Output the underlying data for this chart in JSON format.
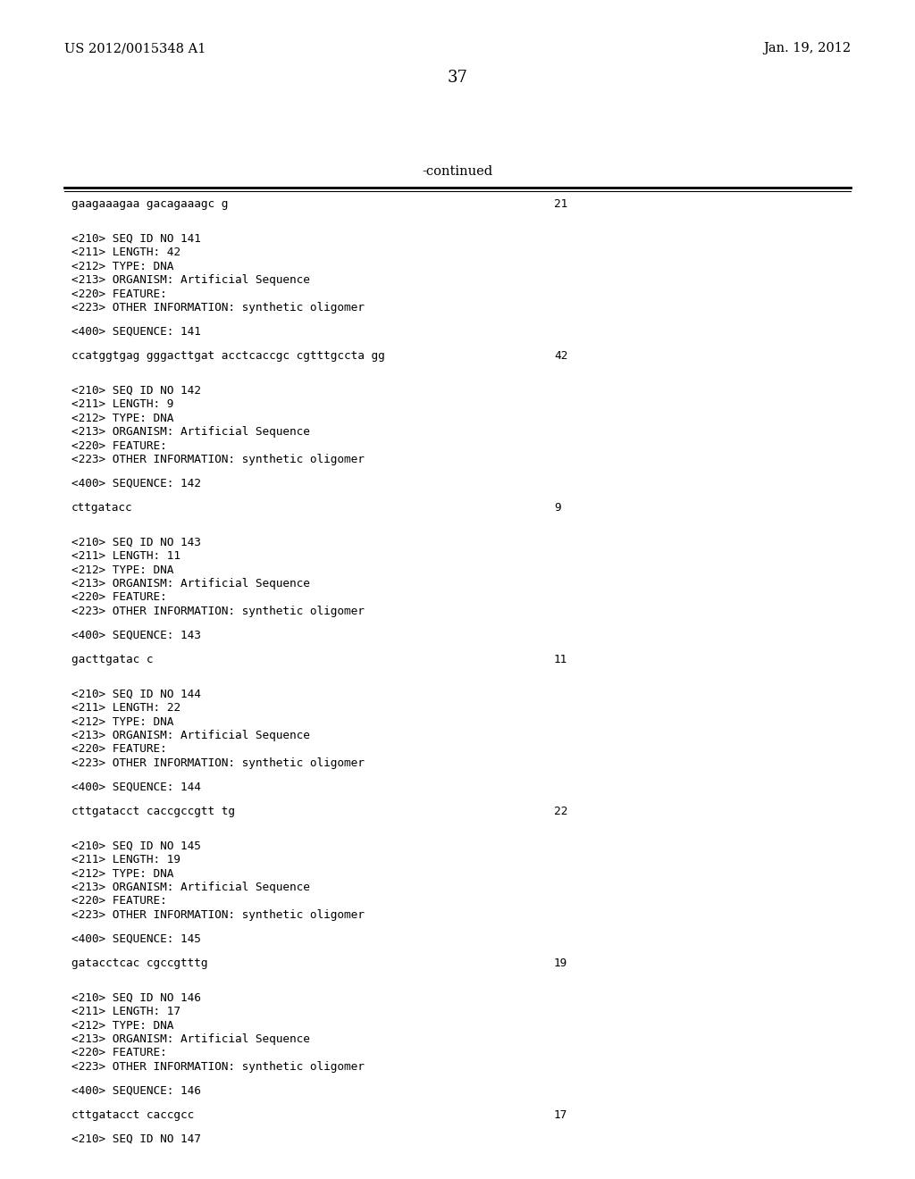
{
  "patent_number": "US 2012/0015348 A1",
  "date": "Jan. 19, 2012",
  "page_number": "37",
  "continued_label": "-continued",
  "background_color": "#ffffff",
  "text_color": "#000000",
  "lines": [
    {
      "type": "sequence_line",
      "text": "gaagaaagaa gacagaaagc g",
      "num": "21"
    },
    {
      "type": "blank"
    },
    {
      "type": "blank"
    },
    {
      "type": "meta",
      "text": "<210> SEQ ID NO 141"
    },
    {
      "type": "meta",
      "text": "<211> LENGTH: 42"
    },
    {
      "type": "meta",
      "text": "<212> TYPE: DNA"
    },
    {
      "type": "meta",
      "text": "<213> ORGANISM: Artificial Sequence"
    },
    {
      "type": "meta",
      "text": "<220> FEATURE:"
    },
    {
      "type": "meta",
      "text": "<223> OTHER INFORMATION: synthetic oligomer"
    },
    {
      "type": "blank"
    },
    {
      "type": "meta",
      "text": "<400> SEQUENCE: 141"
    },
    {
      "type": "blank"
    },
    {
      "type": "sequence_line",
      "text": "ccatggtgag gggacttgat acctcaccgc cgtttgccta gg",
      "num": "42"
    },
    {
      "type": "blank"
    },
    {
      "type": "blank"
    },
    {
      "type": "meta",
      "text": "<210> SEQ ID NO 142"
    },
    {
      "type": "meta",
      "text": "<211> LENGTH: 9"
    },
    {
      "type": "meta",
      "text": "<212> TYPE: DNA"
    },
    {
      "type": "meta",
      "text": "<213> ORGANISM: Artificial Sequence"
    },
    {
      "type": "meta",
      "text": "<220> FEATURE:"
    },
    {
      "type": "meta",
      "text": "<223> OTHER INFORMATION: synthetic oligomer"
    },
    {
      "type": "blank"
    },
    {
      "type": "meta",
      "text": "<400> SEQUENCE: 142"
    },
    {
      "type": "blank"
    },
    {
      "type": "sequence_line",
      "text": "cttgatacc",
      "num": "9"
    },
    {
      "type": "blank"
    },
    {
      "type": "blank"
    },
    {
      "type": "meta",
      "text": "<210> SEQ ID NO 143"
    },
    {
      "type": "meta",
      "text": "<211> LENGTH: 11"
    },
    {
      "type": "meta",
      "text": "<212> TYPE: DNA"
    },
    {
      "type": "meta",
      "text": "<213> ORGANISM: Artificial Sequence"
    },
    {
      "type": "meta",
      "text": "<220> FEATURE:"
    },
    {
      "type": "meta",
      "text": "<223> OTHER INFORMATION: synthetic oligomer"
    },
    {
      "type": "blank"
    },
    {
      "type": "meta",
      "text": "<400> SEQUENCE: 143"
    },
    {
      "type": "blank"
    },
    {
      "type": "sequence_line",
      "text": "gacttgatac c",
      "num": "11"
    },
    {
      "type": "blank"
    },
    {
      "type": "blank"
    },
    {
      "type": "meta",
      "text": "<210> SEQ ID NO 144"
    },
    {
      "type": "meta",
      "text": "<211> LENGTH: 22"
    },
    {
      "type": "meta",
      "text": "<212> TYPE: DNA"
    },
    {
      "type": "meta",
      "text": "<213> ORGANISM: Artificial Sequence"
    },
    {
      "type": "meta",
      "text": "<220> FEATURE:"
    },
    {
      "type": "meta",
      "text": "<223> OTHER INFORMATION: synthetic oligomer"
    },
    {
      "type": "blank"
    },
    {
      "type": "meta",
      "text": "<400> SEQUENCE: 144"
    },
    {
      "type": "blank"
    },
    {
      "type": "sequence_line",
      "text": "cttgatacct caccgccgtt tg",
      "num": "22"
    },
    {
      "type": "blank"
    },
    {
      "type": "blank"
    },
    {
      "type": "meta",
      "text": "<210> SEQ ID NO 145"
    },
    {
      "type": "meta",
      "text": "<211> LENGTH: 19"
    },
    {
      "type": "meta",
      "text": "<212> TYPE: DNA"
    },
    {
      "type": "meta",
      "text": "<213> ORGANISM: Artificial Sequence"
    },
    {
      "type": "meta",
      "text": "<220> FEATURE:"
    },
    {
      "type": "meta",
      "text": "<223> OTHER INFORMATION: synthetic oligomer"
    },
    {
      "type": "blank"
    },
    {
      "type": "meta",
      "text": "<400> SEQUENCE: 145"
    },
    {
      "type": "blank"
    },
    {
      "type": "sequence_line",
      "text": "gatacctcac cgccgtttg",
      "num": "19"
    },
    {
      "type": "blank"
    },
    {
      "type": "blank"
    },
    {
      "type": "meta",
      "text": "<210> SEQ ID NO 146"
    },
    {
      "type": "meta",
      "text": "<211> LENGTH: 17"
    },
    {
      "type": "meta",
      "text": "<212> TYPE: DNA"
    },
    {
      "type": "meta",
      "text": "<213> ORGANISM: Artificial Sequence"
    },
    {
      "type": "meta",
      "text": "<220> FEATURE:"
    },
    {
      "type": "meta",
      "text": "<223> OTHER INFORMATION: synthetic oligomer"
    },
    {
      "type": "blank"
    },
    {
      "type": "meta",
      "text": "<400> SEQUENCE: 146"
    },
    {
      "type": "blank"
    },
    {
      "type": "sequence_line",
      "text": "cttgatacct caccgcc",
      "num": "17"
    },
    {
      "type": "blank"
    },
    {
      "type": "meta",
      "text": "<210> SEQ ID NO 147"
    }
  ]
}
